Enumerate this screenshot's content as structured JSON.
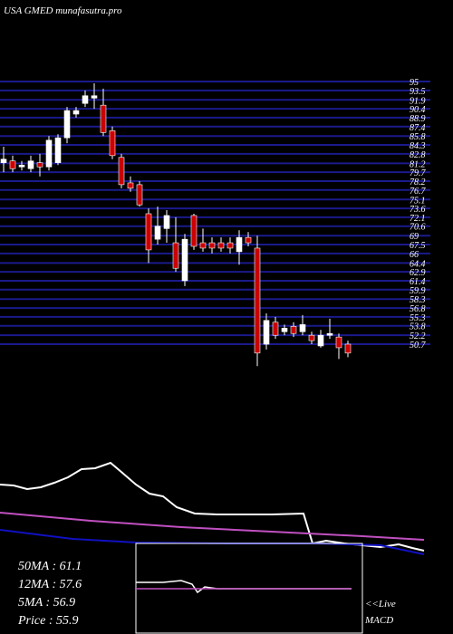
{
  "chart_data": {
    "type": "candlestick",
    "title": "USA GMED munafasutra.pro",
    "ylim": [
      50.7,
      95.0
    ],
    "yticks": [
      95.0,
      93.5,
      91.9,
      90.4,
      88.9,
      87.4,
      85.8,
      84.3,
      82.8,
      81.2,
      79.7,
      78.2,
      76.7,
      75.1,
      73.6,
      72.1,
      70.6,
      69.0,
      67.5,
      66.0,
      64.4,
      62.9,
      61.4,
      59.9,
      58.3,
      56.8,
      55.3,
      53.8,
      52.2,
      50.7
    ],
    "grid": true,
    "grid_color": "#1a1a8c",
    "up_color": "#ffffff",
    "down_color": "#cc0000",
    "open": [
      81.3,
      81.6,
      80.6,
      80.3,
      81.3,
      80.6,
      81.3,
      85.5,
      89.5,
      91.3,
      92.2,
      91.0,
      86.7,
      82.2,
      77.9,
      77.6,
      72.7,
      68.4,
      70.2,
      67.8,
      61.4,
      72.4,
      67.8,
      67.8,
      67.8,
      67.8,
      66.3,
      68.7,
      66.9,
      50.7,
      54.4,
      52.8,
      53.7,
      52.8,
      52.2,
      50.4,
      52.2,
      51.9,
      50.7
    ],
    "close": [
      81.9,
      80.3,
      80.9,
      81.6,
      80.6,
      85.1,
      85.5,
      90.1,
      90.1,
      92.6,
      92.6,
      86.4,
      82.5,
      77.6,
      77.0,
      74.2,
      66.6,
      70.6,
      72.4,
      63.5,
      68.4,
      67.2,
      66.9,
      66.9,
      66.9,
      66.9,
      68.7,
      67.8,
      49.2,
      54.7,
      52.2,
      53.4,
      52.5,
      54.0,
      51.3,
      52.2,
      52.5,
      50.1,
      49.2
    ],
    "high": [
      84.0,
      82.5,
      81.6,
      82.5,
      82.8,
      85.8,
      86.1,
      90.7,
      90.7,
      93.5,
      94.7,
      93.8,
      87.4,
      82.8,
      79.0,
      78.2,
      73.6,
      73.9,
      73.3,
      72.1,
      69.3,
      72.7,
      70.2,
      68.7,
      68.7,
      68.7,
      69.9,
      69.6,
      69.0,
      55.9,
      55.3,
      54.0,
      54.4,
      55.6,
      52.8,
      53.1,
      55.0,
      52.5,
      51.3
    ],
    "low": [
      79.7,
      79.7,
      80.0,
      79.7,
      79.0,
      80.0,
      80.9,
      84.6,
      88.9,
      90.7,
      90.4,
      85.8,
      81.9,
      77.0,
      76.4,
      73.9,
      64.4,
      67.5,
      67.8,
      62.9,
      60.5,
      66.6,
      66.3,
      66.0,
      66.3,
      66.0,
      64.1,
      67.2,
      47.0,
      49.8,
      51.6,
      52.2,
      51.9,
      52.2,
      50.7,
      50.1,
      51.6,
      48.2,
      48.5
    ],
    "indicators": [
      "50MA : 61.1",
      "12MA : 57.6",
      "5MA : 56.9",
      "Price   : 55.9"
    ],
    "macd_labels": [
      "<<Live",
      "MACD"
    ]
  }
}
